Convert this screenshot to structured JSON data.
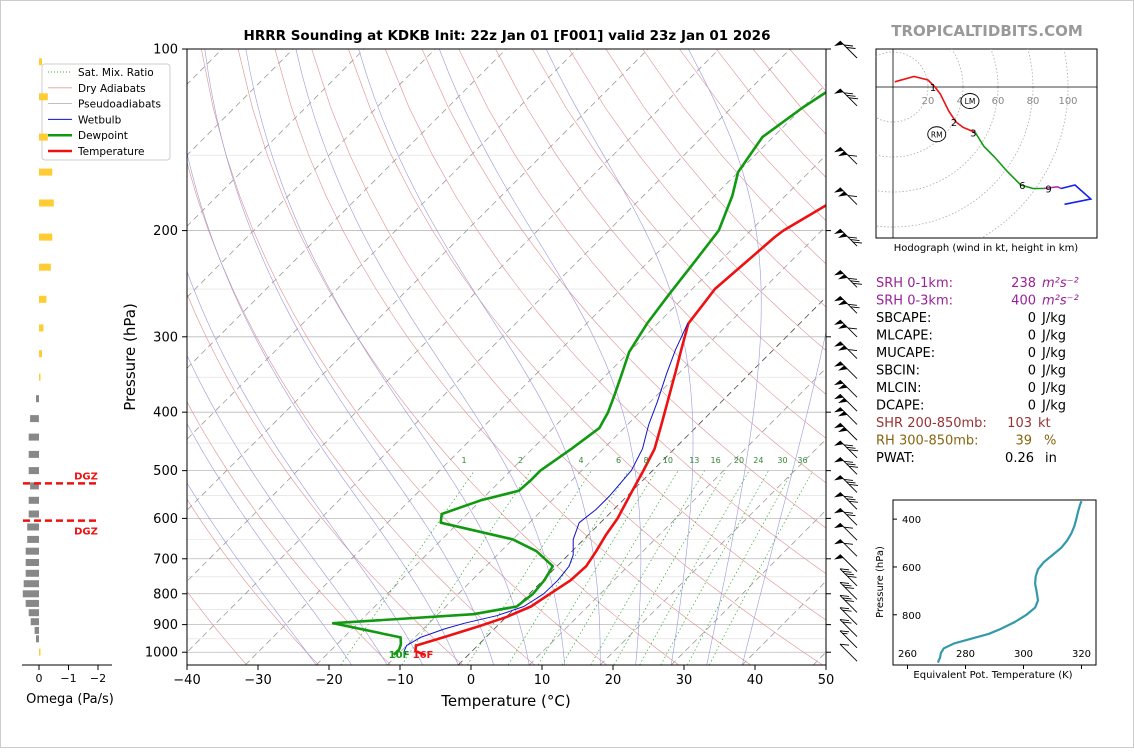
{
  "header": {
    "title": "HRRR Sounding at KDKB Init: 22z Jan 01 [F001] valid 23z Jan 01 2026",
    "brand": "TROPICALTIDBITS.COM"
  },
  "colors": {
    "temperature": "#ee1111",
    "dewpoint": "#119911",
    "wetbulb": "#1111cc",
    "brand": "#999999",
    "srh": "#992299",
    "shr": "#993333",
    "rh": "#886611",
    "theta_e": "#3399aa"
  },
  "chart_data": [
    {
      "id": "skewt",
      "type": "line",
      "xlabel": "Temperature (°C)",
      "ylabel": "Pressure (hPa)",
      "xlim": [
        -40,
        50
      ],
      "ylim": [
        1050,
        100
      ],
      "y_scale": "log",
      "x_ticks": [
        -40,
        -30,
        -20,
        -10,
        0,
        10,
        20,
        30,
        40,
        50
      ],
      "x_tick_labels": [
        "−40",
        "−30",
        "−20",
        "−10",
        "0",
        "10",
        "20",
        "30",
        "40",
        "50"
      ],
      "y_ticks": [
        100,
        200,
        300,
        400,
        500,
        600,
        700,
        800,
        900,
        1000
      ],
      "y_tick_labels": [
        "100",
        "200",
        "300",
        "400",
        "500",
        "600",
        "700",
        "800",
        "900",
        "1000"
      ],
      "legend": {
        "placement": "top-left",
        "entries": [
          "Sat. Mix. Ratio",
          "Dry Adiabats",
          "Pseudoadiabats",
          "Wetbulb",
          "Dewpoint",
          "Temperature"
        ]
      },
      "mixing_ratio_labels": [
        "1",
        "2",
        "4",
        "6",
        "8",
        "10",
        "13",
        "16",
        "20",
        "24",
        "30",
        "36"
      ],
      "mixing_ratio_values": [
        1,
        2,
        4,
        6,
        8,
        10,
        13,
        16,
        20,
        24,
        30,
        36
      ],
      "series": [
        {
          "name": "Temperature",
          "points": [
            [
              -6.2,
              1010
            ],
            [
              -8,
              995
            ],
            [
              -8.7,
              975
            ],
            [
              -6,
              945
            ],
            [
              -2.5,
              905
            ],
            [
              0,
              875
            ],
            [
              2,
              840
            ],
            [
              2.9,
              800
            ],
            [
              3.9,
              760
            ],
            [
              4.1,
              720
            ],
            [
              3.4,
              680
            ],
            [
              2.5,
              640
            ],
            [
              1.8,
              600
            ],
            [
              0.3,
              550
            ],
            [
              -1.3,
              500
            ],
            [
              -2.8,
              460
            ],
            [
              -5.2,
              420
            ],
            [
              -7.9,
              380
            ],
            [
              -10.5,
              345
            ],
            [
              -13,
              315
            ],
            [
              -15.7,
              285
            ],
            [
              -16.4,
              262
            ],
            [
              -16.8,
              250
            ],
            [
              -16.2,
              225
            ],
            [
              -15.7,
              205
            ],
            [
              -15.4,
              200
            ],
            [
              -12.7,
              180
            ],
            [
              -10,
              160
            ],
            [
              -7,
              140
            ],
            [
              -4,
              124
            ],
            [
              -1.3,
              112
            ],
            [
              0.6,
              100
            ]
          ]
        },
        {
          "name": "Dewpoint",
          "points": [
            [
              -10.5,
              1010
            ],
            [
              -10.5,
              990
            ],
            [
              -11,
              970
            ],
            [
              -12,
              945
            ],
            [
              -23.5,
              895
            ],
            [
              -5,
              865
            ],
            [
              0,
              840
            ],
            [
              0.5,
              800
            ],
            [
              0.2,
              760
            ],
            [
              -0.6,
              720
            ],
            [
              -5,
              680
            ],
            [
              -10,
              650
            ],
            [
              -22.5,
              610
            ],
            [
              -23.6,
              590
            ],
            [
              -20,
              560
            ],
            [
              -16,
              540
            ],
            [
              -15.8,
              520
            ],
            [
              -15.8,
              500
            ],
            [
              -14.5,
              460
            ],
            [
              -13.5,
              425
            ],
            [
              -14.5,
              400
            ],
            [
              -16,
              375
            ],
            [
              -18,
              345
            ],
            [
              -20,
              318
            ],
            [
              -21.5,
              285
            ],
            [
              -22.5,
              255
            ],
            [
              -23.5,
              225
            ],
            [
              -24.5,
              200
            ],
            [
              -27.5,
              175
            ],
            [
              -30,
              160
            ],
            [
              -31.5,
              140
            ],
            [
              -30,
              125
            ],
            [
              -27.5,
              110
            ],
            [
              -25.5,
              100
            ]
          ]
        },
        {
          "name": "Wetbulb",
          "points": [
            [
              -8.7,
              1010
            ],
            [
              -9.6,
              995
            ],
            [
              -10,
              975
            ],
            [
              -9.2,
              945
            ],
            [
              -7,
              915
            ],
            [
              -5,
              895
            ],
            [
              -1.5,
              870
            ],
            [
              1,
              840
            ],
            [
              2,
              800
            ],
            [
              2.1,
              760
            ],
            [
              1.7,
              720
            ],
            [
              0.7,
              690
            ],
            [
              -1.5,
              650
            ],
            [
              -3,
              610
            ],
            [
              -2.5,
              580
            ],
            [
              -2.5,
              550
            ],
            [
              -3,
              500
            ],
            [
              -4.5,
              460
            ],
            [
              -7,
              420
            ],
            [
              -9,
              385
            ],
            [
              -11.7,
              345
            ],
            [
              -13.8,
              315
            ],
            [
              -15.8,
              285
            ]
          ]
        }
      ],
      "annotations": [
        "DGZ",
        "DGZ",
        "10F",
        "16F"
      ]
    },
    {
      "id": "omega",
      "type": "bar",
      "orientation": "horizontal",
      "xlabel": "Omega (Pa/s)",
      "x_ticks": [
        0,
        -1,
        -2
      ],
      "x_tick_labels": [
        "0",
        "−1",
        "−2"
      ],
      "dgz_labels": [
        "DGZ",
        "DGZ"
      ],
      "bars": [
        {
          "p": 1000,
          "v": 0.05
        },
        {
          "p": 950,
          "v": -0.1
        },
        {
          "p": 920,
          "v": -0.15
        },
        {
          "p": 890,
          "v": -0.28
        },
        {
          "p": 860,
          "v": -0.35
        },
        {
          "p": 830,
          "v": -0.45
        },
        {
          "p": 800,
          "v": -0.55
        },
        {
          "p": 770,
          "v": -0.52
        },
        {
          "p": 740,
          "v": -0.45
        },
        {
          "p": 710,
          "v": -0.45
        },
        {
          "p": 680,
          "v": -0.45
        },
        {
          "p": 650,
          "v": -0.4
        },
        {
          "p": 620,
          "v": -0.4
        },
        {
          "p": 590,
          "v": -0.35
        },
        {
          "p": 560,
          "v": -0.35
        },
        {
          "p": 530,
          "v": -0.3
        },
        {
          "p": 500,
          "v": -0.35
        },
        {
          "p": 470,
          "v": -0.35
        },
        {
          "p": 440,
          "v": -0.35
        },
        {
          "p": 410,
          "v": -0.3
        },
        {
          "p": 380,
          "v": -0.1
        },
        {
          "p": 350,
          "v": 0.05
        },
        {
          "p": 320,
          "v": 0.1
        },
        {
          "p": 290,
          "v": 0.15
        },
        {
          "p": 260,
          "v": 0.25
        },
        {
          "p": 230,
          "v": 0.4
        },
        {
          "p": 205,
          "v": 0.45
        },
        {
          "p": 180,
          "v": 0.5
        },
        {
          "p": 160,
          "v": 0.45
        },
        {
          "p": 140,
          "v": 0.3
        },
        {
          "p": 120,
          "v": 0.3
        },
        {
          "p": 105,
          "v": 0.1
        }
      ]
    },
    {
      "id": "hodograph",
      "type": "line",
      "title": "Hodograph (wind in kt, height in km)",
      "ring_labels": [
        "20",
        "40",
        "60",
        "80",
        "100"
      ],
      "ring_values": [
        20,
        40,
        60,
        80,
        100
      ],
      "height_labels": [
        "1",
        "2",
        "3",
        "6",
        "9"
      ],
      "storm_motion_labels": [
        "LM",
        "RM"
      ],
      "segments": [
        {
          "color": "red",
          "points": [
            [
              1,
              3
            ],
            [
              12,
              6
            ],
            [
              20,
              4
            ],
            [
              24,
              0
            ],
            [
              27,
              -4
            ],
            [
              32,
              -14
            ],
            [
              36,
              -20
            ],
            [
              40,
              -23
            ],
            [
              47,
              -26
            ]
          ]
        },
        {
          "color": "green",
          "points": [
            [
              47,
              -26
            ],
            [
              52,
              -34
            ],
            [
              58,
              -40
            ],
            [
              65,
              -48
            ],
            [
              73,
              -56
            ],
            [
              80,
              -58
            ],
            [
              86,
              -58
            ]
          ]
        },
        {
          "color": "purple",
          "points": [
            [
              86,
              -58
            ],
            [
              94,
              -57
            ],
            [
              96,
              -58
            ]
          ]
        },
        {
          "color": "blue",
          "points": [
            [
              96,
              -58
            ],
            [
              104,
              -56
            ],
            [
              113,
              -64
            ],
            [
              98,
              -67
            ]
          ]
        }
      ],
      "height_markers": [
        {
          "label": "1",
          "u": 24,
          "v": 0
        },
        {
          "label": "2",
          "u": 36,
          "v": -20
        },
        {
          "label": "3",
          "u": 47,
          "v": -26
        },
        {
          "label": "6",
          "u": 75,
          "v": -56
        },
        {
          "label": "9",
          "u": 90,
          "v": -58
        }
      ],
      "storm_motion": [
        {
          "label": "LM",
          "u": 44,
          "v": -8
        },
        {
          "label": "RM",
          "u": 25,
          "v": -27
        }
      ]
    },
    {
      "id": "theta_e",
      "type": "line",
      "xlabel": "Equivalent Pot. Temperature (K)",
      "ylabel": "Pressure (hPa)",
      "xlim": [
        255,
        325
      ],
      "ylim": [
        1010,
        320
      ],
      "x_ticks": [
        260,
        280,
        300,
        320
      ],
      "x_tick_labels": [
        "260",
        "280",
        "300",
        "320"
      ],
      "y_ticks": [
        400,
        600,
        800
      ],
      "y_tick_labels": [
        "400",
        "600",
        "800"
      ],
      "points": [
        [
          270.5,
          1000
        ],
        [
          270.8,
          990
        ],
        [
          271.2,
          980
        ],
        [
          271.5,
          960
        ],
        [
          272.5,
          940
        ],
        [
          276,
          920
        ],
        [
          282,
          900
        ],
        [
          288,
          880
        ],
        [
          292,
          860
        ],
        [
          297,
          830
        ],
        [
          301,
          800
        ],
        [
          304,
          770
        ],
        [
          305,
          740
        ],
        [
          304.5,
          700
        ],
        [
          304,
          670
        ],
        [
          304.2,
          640
        ],
        [
          305,
          610
        ],
        [
          307,
          580
        ],
        [
          310,
          550
        ],
        [
          313,
          520
        ],
        [
          315,
          490
        ],
        [
          316.5,
          460
        ],
        [
          317.5,
          430
        ],
        [
          318.2,
          400
        ],
        [
          318.8,
          370
        ],
        [
          319.5,
          340
        ],
        [
          320,
          325
        ]
      ]
    }
  ],
  "wind_profile_pressures": [
    100,
    120,
    150,
    175,
    205,
    240,
    265,
    290,
    315,
    340,
    365,
    385,
    405,
    430,
    460,
    490,
    525,
    560,
    595,
    630,
    670,
    710,
    750,
    790,
    830,
    870,
    910,
    950,
    1000
  ],
  "wind_profile_flags": [
    {
      "p": 100,
      "pennants": 1,
      "barbs": 2,
      "half": 0
    },
    {
      "p": 120,
      "pennants": 1,
      "barbs": 3,
      "half": 0
    },
    {
      "p": 150,
      "pennants": 2,
      "barbs": 1,
      "half": 0
    },
    {
      "p": 175,
      "pennants": 2,
      "barbs": 1,
      "half": 0
    },
    {
      "p": 205,
      "pennants": 2,
      "barbs": 3,
      "half": 0
    },
    {
      "p": 240,
      "pennants": 2,
      "barbs": 3,
      "half": 0
    },
    {
      "p": 265,
      "pennants": 2,
      "barbs": 2,
      "half": 0
    },
    {
      "p": 290,
      "pennants": 2,
      "barbs": 1,
      "half": 0
    },
    {
      "p": 315,
      "pennants": 2,
      "barbs": 1,
      "half": 0
    },
    {
      "p": 340,
      "pennants": 2,
      "barbs": 0,
      "half": 0
    },
    {
      "p": 365,
      "pennants": 2,
      "barbs": 0,
      "half": 0
    },
    {
      "p": 385,
      "pennants": 2,
      "barbs": 0,
      "half": 0
    },
    {
      "p": 405,
      "pennants": 2,
      "barbs": 0,
      "half": 0
    },
    {
      "p": 430,
      "pennants": 2,
      "barbs": 0,
      "half": 0
    },
    {
      "p": 460,
      "pennants": 1,
      "barbs": 3,
      "half": 0
    },
    {
      "p": 490,
      "pennants": 1,
      "barbs": 3,
      "half": 0
    },
    {
      "p": 525,
      "pennants": 1,
      "barbs": 3,
      "half": 0
    },
    {
      "p": 560,
      "pennants": 1,
      "barbs": 3,
      "half": 0
    },
    {
      "p": 595,
      "pennants": 1,
      "barbs": 2,
      "half": 0
    },
    {
      "p": 630,
      "pennants": 1,
      "barbs": 1,
      "half": 0
    },
    {
      "p": 670,
      "pennants": 1,
      "barbs": 1,
      "half": 0
    },
    {
      "p": 710,
      "pennants": 1,
      "barbs": 0,
      "half": 0
    },
    {
      "p": 750,
      "pennants": 0,
      "barbs": 4,
      "half": 0
    },
    {
      "p": 790,
      "pennants": 0,
      "barbs": 3,
      "half": 0
    },
    {
      "p": 830,
      "pennants": 0,
      "barbs": 3,
      "half": 0
    },
    {
      "p": 870,
      "pennants": 0,
      "barbs": 2,
      "half": 0
    },
    {
      "p": 910,
      "pennants": 0,
      "barbs": 2,
      "half": 0
    },
    {
      "p": 950,
      "pennants": 0,
      "barbs": 1,
      "half": 1
    },
    {
      "p": 1000,
      "pennants": 0,
      "barbs": 1,
      "half": 0
    }
  ],
  "parameters": [
    {
      "label": "SRH 0-1km:",
      "value": "238",
      "unit": "m²s⁻²",
      "color": "#992299"
    },
    {
      "label": "SRH 0-3km:",
      "value": "400",
      "unit": "m²s⁻²",
      "color": "#992299"
    },
    {
      "label": "SBCAPE:",
      "value": "0",
      "unit": "J/kg",
      "color": "#000000"
    },
    {
      "label": "MLCAPE:",
      "value": "0",
      "unit": "J/kg",
      "color": "#000000"
    },
    {
      "label": "MUCAPE:",
      "value": "0",
      "unit": "J/kg",
      "color": "#000000"
    },
    {
      "label": "SBCIN:",
      "value": "0",
      "unit": "J/kg",
      "color": "#000000"
    },
    {
      "label": "MLCIN:",
      "value": "0",
      "unit": "J/kg",
      "color": "#000000"
    },
    {
      "label": "DCAPE:",
      "value": "0",
      "unit": "J/kg",
      "color": "#000000"
    },
    {
      "label": "SHR 200-850mb:",
      "value": "103",
      "unit": "kt",
      "color": "#993333"
    },
    {
      "label": "RH 300-850mb:",
      "value": "39",
      "unit": "%",
      "color": "#886611"
    },
    {
      "label": "PWAT:",
      "value": "0.26",
      "unit": "in",
      "color": "#000000"
    }
  ]
}
